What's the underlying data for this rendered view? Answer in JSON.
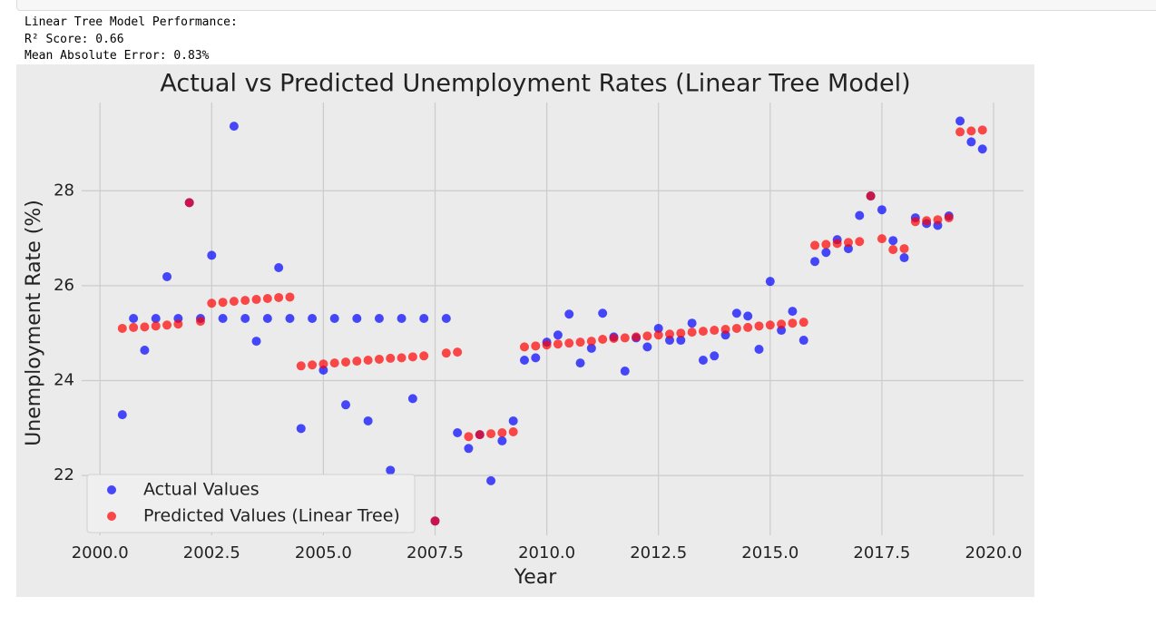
{
  "output_lines": [
    "Linear Tree Model Performance:",
    "R² Score: 0.66",
    "Mean Absolute Error: 0.83%"
  ],
  "chart_data": {
    "type": "scatter",
    "title": "Actual vs Predicted Unemployment Rates (Linear Tree Model)",
    "x_label": "Year",
    "y_label": "Unemployment Rate (%)",
    "x": [
      2000.5,
      2000.75,
      2001.0,
      2001.25,
      2001.5,
      2001.75,
      2002.0,
      2002.25,
      2002.5,
      2002.75,
      2003.0,
      2003.25,
      2003.5,
      2003.75,
      2004.0,
      2004.25,
      2004.5,
      2004.75,
      2005.0,
      2005.25,
      2005.5,
      2005.75,
      2006.0,
      2006.25,
      2006.5,
      2006.75,
      2007.0,
      2007.25,
      2007.5,
      2007.75,
      2008.0,
      2008.25,
      2008.5,
      2008.75,
      2009.0,
      2009.25,
      2009.5,
      2009.75,
      2010.0,
      2010.25,
      2010.5,
      2010.75,
      2011.0,
      2011.25,
      2011.5,
      2011.75,
      2012.0,
      2012.25,
      2012.5,
      2012.75,
      2013.0,
      2013.25,
      2013.5,
      2013.75,
      2014.0,
      2014.25,
      2014.5,
      2014.75,
      2015.0,
      2015.25,
      2015.5,
      2015.75,
      2016.0,
      2016.25,
      2016.5,
      2016.75,
      2017.0,
      2017.25,
      2017.5,
      2017.75,
      2018.0,
      2018.25,
      2018.5,
      2018.75,
      2019.0,
      2019.25,
      2019.5,
      2019.75
    ],
    "series": [
      {
        "name": "Actual Values",
        "color": "#0000ff",
        "values": [
          23.28,
          25.31,
          24.64,
          25.31,
          26.19,
          25.31,
          27.75,
          25.31,
          26.64,
          25.31,
          29.36,
          25.31,
          24.83,
          25.31,
          26.38,
          25.31,
          22.99,
          25.31,
          24.22,
          25.31,
          23.49,
          25.31,
          23.15,
          25.31,
          22.11,
          25.31,
          23.62,
          25.31,
          21.04,
          25.31,
          22.9,
          22.57,
          22.86,
          21.89,
          22.73,
          23.15,
          24.43,
          24.48,
          24.81,
          24.96,
          25.4,
          24.37,
          24.68,
          25.42,
          24.92,
          24.2,
          24.9,
          24.71,
          25.1,
          24.85,
          24.85,
          25.21,
          24.43,
          24.52,
          24.96,
          25.42,
          25.36,
          24.66,
          26.09,
          25.06,
          25.46,
          24.85,
          26.51,
          26.7,
          26.97,
          26.78,
          27.48,
          27.89,
          27.6,
          26.95,
          26.59,
          27.43,
          27.31,
          27.27,
          27.47,
          29.47,
          29.03,
          28.88
        ]
      },
      {
        "name": "Predicted Values (Linear Tree)",
        "color": "#ff0000",
        "values": [
          25.1,
          25.12,
          25.13,
          25.15,
          25.17,
          25.19,
          27.75,
          25.25,
          25.63,
          25.65,
          25.67,
          25.69,
          25.71,
          25.73,
          25.75,
          25.76,
          24.31,
          24.33,
          24.35,
          24.37,
          24.39,
          24.41,
          24.43,
          24.45,
          24.47,
          24.48,
          24.5,
          24.52,
          21.04,
          24.58,
          24.6,
          22.82,
          22.86,
          22.88,
          22.9,
          22.92,
          24.71,
          24.73,
          24.75,
          24.77,
          24.79,
          24.81,
          24.83,
          24.87,
          24.89,
          24.9,
          24.92,
          24.94,
          24.96,
          24.98,
          25.0,
          25.02,
          25.04,
          25.06,
          25.08,
          25.1,
          25.12,
          25.15,
          25.17,
          25.19,
          25.21,
          25.23,
          26.85,
          26.87,
          26.89,
          26.91,
          26.93,
          27.89,
          26.99,
          26.76,
          26.78,
          27.35,
          27.37,
          27.39,
          27.43,
          29.24,
          29.26,
          29.28
        ]
      }
    ],
    "alpha": 0.7,
    "xlim": [
      1999.59,
      2020.67
    ],
    "ylim": [
      20.74,
      29.86
    ],
    "xticks": [
      {
        "value": 2000,
        "label": "2000.0"
      },
      {
        "value": 2002.5,
        "label": "2002.5"
      },
      {
        "value": 2005,
        "label": "2005.0"
      },
      {
        "value": 2007.5,
        "label": "2007.5"
      },
      {
        "value": 2010,
        "label": "2010.0"
      },
      {
        "value": 2012.5,
        "label": "2012.5"
      },
      {
        "value": 2015,
        "label": "2015.0"
      },
      {
        "value": 2017.5,
        "label": "2017.5"
      },
      {
        "value": 2020,
        "label": "2020.0"
      }
    ],
    "yticks": [
      22,
      24,
      26,
      28
    ],
    "grid": true,
    "legend": "lower left"
  }
}
